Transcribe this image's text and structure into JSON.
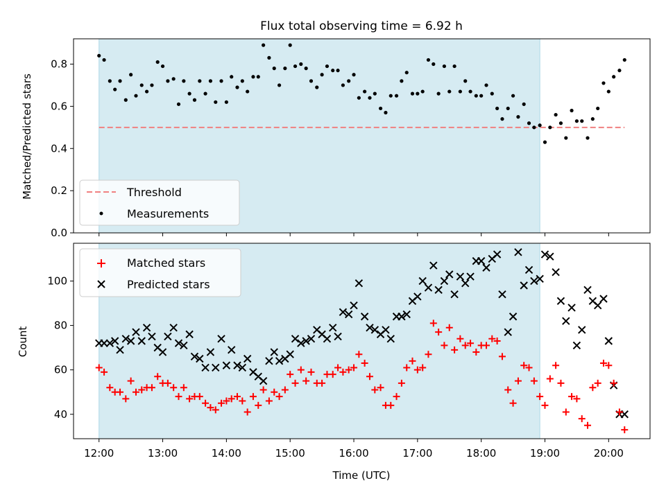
{
  "chart_data": [
    {
      "type": "scatter",
      "title": "Flux total observing time = 6.92 h",
      "ylabel": "Matched/Predicted stars",
      "xlabel": "",
      "xlim": [
        11.6,
        20.65
      ],
      "ylim": [
        0,
        0.92
      ],
      "grid": false,
      "legend_position": "lower-left",
      "yticks": [
        0,
        0.2,
        0.4,
        0.6,
        0.8
      ],
      "ytick_labels": [
        "0.0",
        "0.2",
        "0.4",
        "0.6",
        "0.8"
      ],
      "shaded_span": {
        "x": [
          12.0,
          18.92
        ],
        "color": "#add8e6"
      },
      "threshold": {
        "name": "Threshold",
        "y": 0.5,
        "x": [
          12.0,
          20.25
        ],
        "color": "#f08080"
      },
      "series": [
        {
          "name": "Measurements",
          "marker": "dot",
          "color": "#000000",
          "x": [
            12.0,
            12.08,
            12.17,
            12.25,
            12.33,
            12.42,
            12.5,
            12.58,
            12.67,
            12.75,
            12.83,
            12.92,
            13.0,
            13.08,
            13.17,
            13.25,
            13.33,
            13.42,
            13.5,
            13.58,
            13.67,
            13.75,
            13.83,
            13.92,
            14.0,
            14.08,
            14.17,
            14.25,
            14.33,
            14.42,
            14.5,
            14.58,
            14.67,
            14.75,
            14.83,
            14.92,
            15.0,
            15.08,
            15.17,
            15.25,
            15.33,
            15.42,
            15.5,
            15.58,
            15.67,
            15.75,
            15.83,
            15.92,
            16.0,
            16.08,
            16.17,
            16.25,
            16.33,
            16.42,
            16.5,
            16.58,
            16.67,
            16.75,
            16.83,
            16.92,
            17.0,
            17.08,
            17.17,
            17.25,
            17.33,
            17.42,
            17.5,
            17.58,
            17.67,
            17.75,
            17.83,
            17.92,
            18.0,
            18.08,
            18.17,
            18.25,
            18.33,
            18.42,
            18.5,
            18.58,
            18.67,
            18.75,
            18.83,
            18.92,
            19.0,
            19.08,
            19.17,
            19.25,
            19.33,
            19.42,
            19.5,
            19.58,
            19.67,
            19.75,
            19.83,
            19.92,
            20.0,
            20.08,
            20.17,
            20.25
          ],
          "y": [
            0.84,
            0.82,
            0.72,
            0.68,
            0.72,
            0.63,
            0.75,
            0.65,
            0.7,
            0.67,
            0.7,
            0.81,
            0.79,
            0.72,
            0.73,
            0.61,
            0.72,
            0.66,
            0.63,
            0.72,
            0.66,
            0.72,
            0.62,
            0.72,
            0.62,
            0.74,
            0.69,
            0.72,
            0.67,
            0.74,
            0.74,
            0.89,
            0.83,
            0.78,
            0.7,
            0.78,
            0.89,
            0.79,
            0.8,
            0.78,
            0.72,
            0.69,
            0.75,
            0.79,
            0.77,
            0.77,
            0.7,
            0.72,
            0.75,
            0.64,
            0.67,
            0.64,
            0.66,
            0.59,
            0.57,
            0.65,
            0.65,
            0.72,
            0.76,
            0.66,
            0.66,
            0.67,
            0.82,
            0.8,
            0.66,
            0.79,
            0.67,
            0.79,
            0.67,
            0.72,
            0.67,
            0.65,
            0.65,
            0.7,
            0.66,
            0.59,
            0.54,
            0.59,
            0.65,
            0.55,
            0.61,
            0.52,
            0.5,
            0.51,
            0.43,
            0.5,
            0.56,
            0.52,
            0.45,
            0.58,
            0.53,
            0.53,
            0.45,
            0.54,
            0.59,
            0.71,
            0.67,
            0.74,
            0.77,
            0.82
          ]
        }
      ]
    },
    {
      "type": "scatter",
      "title": "",
      "ylabel": "Count",
      "xlabel": "Time (UTC)",
      "xlim": [
        11.6,
        20.65
      ],
      "ylim": [
        29,
        117
      ],
      "grid": false,
      "legend_position": "top-left",
      "yticks": [
        40,
        60,
        80,
        100
      ],
      "ytick_labels": [
        "40",
        "60",
        "80",
        "100"
      ],
      "xticks": [
        12,
        13,
        14,
        15,
        16,
        17,
        18,
        19,
        20
      ],
      "xtick_labels": [
        "12:00",
        "13:00",
        "14:00",
        "15:00",
        "16:00",
        "17:00",
        "18:00",
        "19:00",
        "20:00"
      ],
      "shaded_span": {
        "x": [
          12.0,
          18.92
        ],
        "color": "#add8e6"
      },
      "series": [
        {
          "name": "Matched stars",
          "marker": "plus",
          "color": "#ff0000",
          "x": [
            12.0,
            12.08,
            12.17,
            12.25,
            12.33,
            12.42,
            12.5,
            12.58,
            12.67,
            12.75,
            12.83,
            12.92,
            13.0,
            13.08,
            13.17,
            13.25,
            13.33,
            13.42,
            13.5,
            13.58,
            13.67,
            13.75,
            13.83,
            13.92,
            14.0,
            14.08,
            14.17,
            14.25,
            14.33,
            14.42,
            14.5,
            14.58,
            14.67,
            14.75,
            14.83,
            14.92,
            15.0,
            15.08,
            15.17,
            15.25,
            15.33,
            15.42,
            15.5,
            15.58,
            15.67,
            15.75,
            15.83,
            15.92,
            16.0,
            16.08,
            16.17,
            16.25,
            16.33,
            16.42,
            16.5,
            16.58,
            16.67,
            16.75,
            16.83,
            16.92,
            17.0,
            17.08,
            17.17,
            17.25,
            17.33,
            17.42,
            17.5,
            17.58,
            17.67,
            17.75,
            17.83,
            17.92,
            18.0,
            18.08,
            18.17,
            18.25,
            18.33,
            18.42,
            18.5,
            18.58,
            18.67,
            18.75,
            18.83,
            18.92,
            19.0,
            19.08,
            19.17,
            19.25,
            19.33,
            19.42,
            19.5,
            19.58,
            19.67,
            19.75,
            19.83,
            19.92,
            20.0,
            20.08,
            20.17,
            20.25
          ],
          "y": [
            61,
            59,
            52,
            50,
            50,
            47,
            55,
            50,
            51,
            52,
            52,
            57,
            54,
            54,
            52,
            48,
            52,
            47,
            48,
            48,
            45,
            43,
            42,
            45,
            46,
            47,
            48,
            46,
            41,
            48,
            44,
            51,
            46,
            50,
            48,
            51,
            58,
            54,
            60,
            55,
            59,
            54,
            54,
            58,
            58,
            61,
            59,
            60,
            61,
            67,
            63,
            57,
            51,
            52,
            44,
            44,
            48,
            54,
            61,
            64,
            60,
            61,
            67,
            81,
            77,
            71,
            79,
            69,
            74,
            71,
            72,
            68,
            71,
            71,
            74,
            73,
            66,
            51,
            45,
            55,
            62,
            61,
            55,
            48,
            44,
            56,
            62,
            54,
            41,
            48,
            47,
            38,
            35,
            52,
            54,
            63,
            62,
            54,
            41,
            33
          ]
        },
        {
          "name": "Predicted stars",
          "marker": "x",
          "color": "#000000",
          "x": [
            12.0,
            12.08,
            12.17,
            12.25,
            12.33,
            12.42,
            12.5,
            12.58,
            12.67,
            12.75,
            12.83,
            12.92,
            13.0,
            13.08,
            13.17,
            13.25,
            13.33,
            13.42,
            13.5,
            13.58,
            13.67,
            13.75,
            13.83,
            13.92,
            14.0,
            14.08,
            14.17,
            14.25,
            14.33,
            14.42,
            14.5,
            14.58,
            14.67,
            14.75,
            14.83,
            14.92,
            15.0,
            15.08,
            15.17,
            15.25,
            15.33,
            15.42,
            15.5,
            15.58,
            15.67,
            15.75,
            15.83,
            15.92,
            16.0,
            16.08,
            16.17,
            16.25,
            16.33,
            16.42,
            16.5,
            16.58,
            16.67,
            16.75,
            16.83,
            16.92,
            17.0,
            17.08,
            17.17,
            17.25,
            17.33,
            17.42,
            17.5,
            17.58,
            17.67,
            17.75,
            17.83,
            17.92,
            18.0,
            18.08,
            18.17,
            18.25,
            18.33,
            18.42,
            18.5,
            18.58,
            18.67,
            18.75,
            18.83,
            18.92,
            19.0,
            19.08,
            19.17,
            19.25,
            19.33,
            19.42,
            19.5,
            19.58,
            19.67,
            19.75,
            19.83,
            19.92,
            20.0,
            20.08,
            20.17,
            20.25
          ],
          "y": [
            72,
            72,
            72,
            73,
            69,
            74,
            73,
            77,
            73,
            79,
            75,
            70,
            68,
            75,
            79,
            72,
            71,
            76,
            66,
            65,
            61,
            68,
            61,
            74,
            62,
            69,
            62,
            61,
            65,
            59,
            57,
            55,
            64,
            68,
            64,
            65,
            67,
            74,
            72,
            73,
            74,
            78,
            76,
            74,
            79,
            75,
            86,
            85,
            89,
            99,
            84,
            79,
            78,
            76,
            78,
            74,
            84,
            84,
            85,
            91,
            93,
            100,
            97,
            107,
            96,
            100,
            103,
            94,
            102,
            99,
            102,
            109,
            109,
            106,
            110,
            112,
            94,
            77,
            84,
            113,
            98,
            105,
            100,
            101,
            112,
            111,
            104,
            91,
            82,
            88,
            71,
            78,
            96,
            91,
            89,
            92,
            73,
            53,
            40,
            40
          ]
        }
      ]
    }
  ]
}
